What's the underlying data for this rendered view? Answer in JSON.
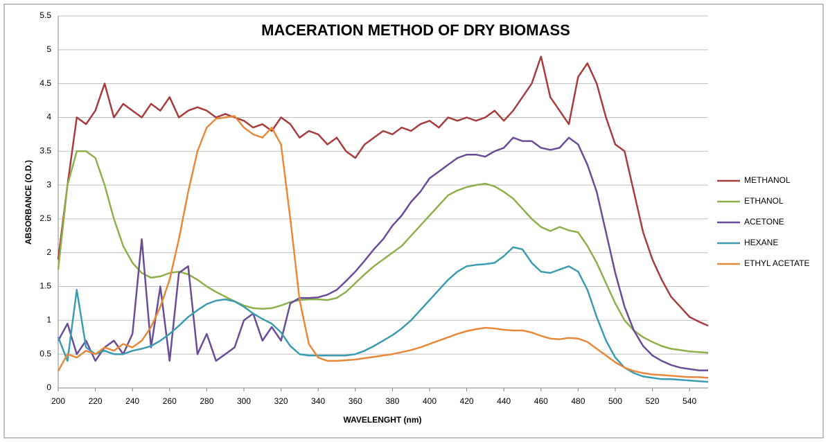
{
  "chart_data": {
    "type": "line",
    "title": "MACERATION METHOD OF DRY BIOMASS",
    "xlabel": "WAVELENGHT (nm)",
    "ylabel": "ABSORBANCE (O.D.)",
    "x": [
      200,
      205,
      210,
      215,
      220,
      225,
      230,
      235,
      240,
      245,
      250,
      255,
      260,
      265,
      270,
      275,
      280,
      285,
      290,
      295,
      300,
      305,
      310,
      315,
      320,
      325,
      330,
      335,
      340,
      345,
      350,
      355,
      360,
      365,
      370,
      375,
      380,
      385,
      390,
      395,
      400,
      405,
      410,
      415,
      420,
      425,
      430,
      435,
      440,
      445,
      450,
      455,
      460,
      465,
      470,
      475,
      480,
      485,
      490,
      495,
      500,
      505,
      510,
      515,
      520,
      525,
      530,
      535,
      540,
      545,
      550
    ],
    "xlim": [
      200,
      550
    ],
    "xticks": [
      200,
      220,
      240,
      260,
      280,
      300,
      320,
      340,
      360,
      380,
      400,
      420,
      440,
      460,
      480,
      500,
      520,
      540
    ],
    "ylim": [
      0,
      5.5
    ],
    "yticks": [
      0,
      0.5,
      1,
      1.5,
      2,
      2.5,
      3,
      3.5,
      4,
      4.5,
      5,
      5.5
    ],
    "grid": true,
    "legend": "right",
    "series": [
      {
        "name": "METHANOL",
        "color": "#a83b3b",
        "values": [
          1.9,
          3.0,
          4.0,
          3.9,
          4.1,
          4.5,
          4.0,
          4.2,
          4.1,
          4.0,
          4.2,
          4.1,
          4.3,
          4.0,
          4.1,
          4.15,
          4.1,
          4.0,
          4.05,
          4.0,
          3.95,
          3.85,
          3.9,
          3.8,
          4.0,
          3.9,
          3.7,
          3.8,
          3.75,
          3.6,
          3.7,
          3.5,
          3.4,
          3.6,
          3.7,
          3.8,
          3.75,
          3.85,
          3.8,
          3.9,
          3.95,
          3.85,
          4.0,
          3.95,
          4.0,
          3.95,
          4.0,
          4.1,
          3.95,
          4.1,
          4.3,
          4.5,
          4.9,
          4.3,
          4.1,
          3.9,
          4.6,
          4.8,
          4.5,
          4.0,
          3.6,
          3.5,
          2.9,
          2.3,
          1.9,
          1.6,
          1.35,
          1.2,
          1.05,
          0.98,
          0.92
        ]
      },
      {
        "name": "ETHANOL",
        "color": "#8db04a",
        "values": [
          1.75,
          3.0,
          3.5,
          3.5,
          3.4,
          3.0,
          2.5,
          2.1,
          1.85,
          1.7,
          1.63,
          1.65,
          1.7,
          1.72,
          1.68,
          1.6,
          1.5,
          1.42,
          1.35,
          1.28,
          1.22,
          1.18,
          1.17,
          1.18,
          1.22,
          1.27,
          1.3,
          1.31,
          1.31,
          1.3,
          1.33,
          1.42,
          1.55,
          1.68,
          1.8,
          1.9,
          2.0,
          2.1,
          2.25,
          2.4,
          2.55,
          2.7,
          2.85,
          2.92,
          2.97,
          3.0,
          3.02,
          2.98,
          2.9,
          2.8,
          2.65,
          2.5,
          2.38,
          2.32,
          2.38,
          2.33,
          2.3,
          2.1,
          1.85,
          1.55,
          1.25,
          1.0,
          0.85,
          0.75,
          0.68,
          0.62,
          0.58,
          0.56,
          0.54,
          0.53,
          0.52
        ]
      },
      {
        "name": "ACETONE",
        "color": "#6a4b9a",
        "values": [
          0.7,
          0.95,
          0.5,
          0.7,
          0.4,
          0.6,
          0.7,
          0.5,
          0.8,
          2.2,
          0.6,
          1.5,
          0.4,
          1.7,
          1.8,
          0.5,
          0.8,
          0.4,
          0.5,
          0.6,
          1.0,
          1.1,
          0.7,
          0.9,
          0.7,
          1.25,
          1.33,
          1.33,
          1.34,
          1.38,
          1.45,
          1.58,
          1.72,
          1.88,
          2.05,
          2.2,
          2.4,
          2.55,
          2.75,
          2.9,
          3.1,
          3.2,
          3.3,
          3.4,
          3.45,
          3.45,
          3.42,
          3.5,
          3.55,
          3.7,
          3.65,
          3.65,
          3.55,
          3.52,
          3.55,
          3.7,
          3.6,
          3.3,
          2.9,
          2.3,
          1.7,
          1.2,
          0.85,
          0.62,
          0.48,
          0.4,
          0.34,
          0.3,
          0.28,
          0.26,
          0.26
        ]
      },
      {
        "name": "HEXANE",
        "color": "#3b9bb0",
        "values": [
          0.75,
          0.4,
          1.45,
          0.6,
          0.5,
          0.55,
          0.5,
          0.5,
          0.55,
          0.58,
          0.62,
          0.7,
          0.8,
          0.92,
          1.05,
          1.15,
          1.24,
          1.29,
          1.31,
          1.28,
          1.2,
          1.1,
          1.02,
          0.95,
          0.82,
          0.62,
          0.5,
          0.48,
          0.48,
          0.48,
          0.48,
          0.48,
          0.5,
          0.55,
          0.62,
          0.7,
          0.78,
          0.88,
          1.0,
          1.15,
          1.3,
          1.45,
          1.6,
          1.72,
          1.8,
          1.82,
          1.83,
          1.85,
          1.95,
          2.08,
          2.05,
          1.85,
          1.72,
          1.7,
          1.75,
          1.8,
          1.72,
          1.45,
          1.05,
          0.7,
          0.45,
          0.3,
          0.22,
          0.17,
          0.15,
          0.13,
          0.13,
          0.12,
          0.11,
          0.1,
          0.09
        ]
      },
      {
        "name": "ETHYL ACETATE",
        "color": "#e8883a",
        "values": [
          0.25,
          0.5,
          0.45,
          0.55,
          0.5,
          0.6,
          0.55,
          0.65,
          0.6,
          0.7,
          0.9,
          1.2,
          1.6,
          2.2,
          2.9,
          3.5,
          3.85,
          3.98,
          4.0,
          4.02,
          3.85,
          3.75,
          3.7,
          3.85,
          3.6,
          2.5,
          1.3,
          0.65,
          0.45,
          0.4,
          0.4,
          0.41,
          0.42,
          0.44,
          0.46,
          0.48,
          0.5,
          0.53,
          0.56,
          0.6,
          0.65,
          0.7,
          0.75,
          0.8,
          0.84,
          0.87,
          0.89,
          0.88,
          0.86,
          0.85,
          0.85,
          0.82,
          0.77,
          0.73,
          0.72,
          0.74,
          0.73,
          0.68,
          0.58,
          0.48,
          0.38,
          0.3,
          0.25,
          0.22,
          0.2,
          0.19,
          0.18,
          0.17,
          0.16,
          0.16,
          0.15
        ]
      }
    ]
  }
}
